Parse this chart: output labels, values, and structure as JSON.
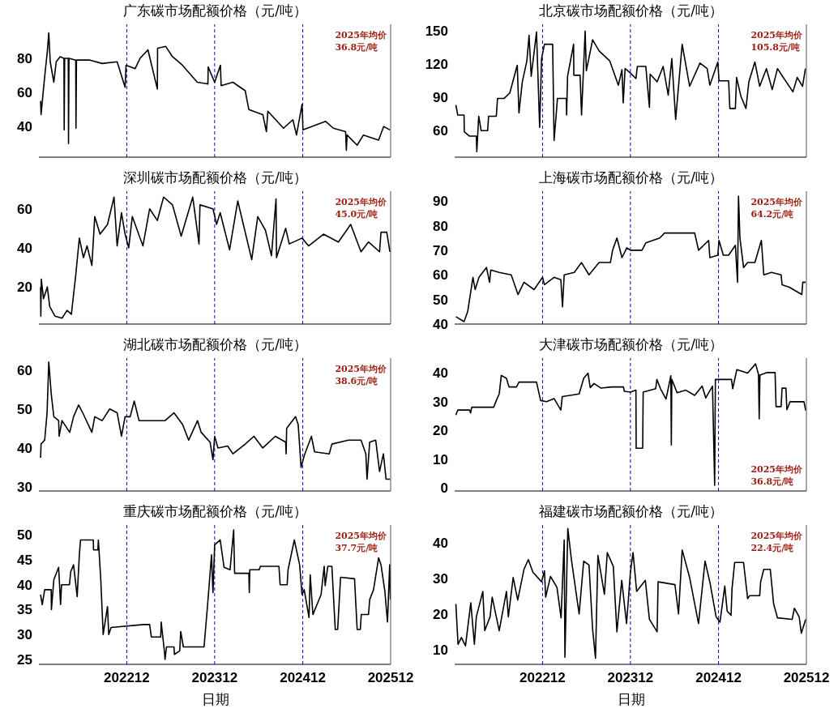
{
  "chart_data": [
    {
      "type": "line",
      "title": "广东碳市场配额价格（元/吨）",
      "color": "#000000",
      "tick_labels": "y",
      "xlim": [
        "2021-12-01",
        "2025-12-01"
      ],
      "ylim": [
        22,
        100
      ],
      "yticks": [
        40,
        60,
        80
      ],
      "ref_lines": [
        {
          "axis": "x",
          "value": "2022-12",
          "color": "#0000ff",
          "line_style": "dashed"
        },
        {
          "axis": "x",
          "value": "2023-12",
          "color": "#0000ff",
          "line_style": "dashed"
        },
        {
          "axis": "x",
          "value": "2024-12",
          "color": "#0000ff",
          "line_style": "dashed"
        }
      ],
      "annotations": [
        "2025年均价\n36.8元/吨"
      ],
      "x": [
        "2021-12-08",
        "2021-12-10",
        "2021-12-20",
        "2021-12-27",
        "2022-01-05",
        "2022-01-11",
        "2022-01-17",
        "2022-02-01",
        "2022-02-11",
        "2022-02-27",
        "2022-03-15",
        "2022-03-16",
        "2022-03-18",
        "2022-04-02",
        "2022-04-03",
        "2022-04-05",
        "2022-05-03",
        "2022-05-04",
        "2022-05-06",
        "2022-07-01",
        "2022-08-21",
        "2022-10-22",
        "2022-11-24",
        "2022-11-28",
        "2023-01-05",
        "2023-01-25",
        "2023-02-27",
        "2023-04-07",
        "2023-04-08",
        "2023-05-12",
        "2023-06-09",
        "2023-07-20",
        "2023-09-20",
        "2023-11-03",
        "2023-11-04",
        "2023-12-01",
        "2023-12-25",
        "2023-12-28",
        "2024-02-15",
        "2024-04-06",
        "2024-04-21",
        "2024-06-18",
        "2024-07-03",
        "2024-07-09",
        "2024-09-12",
        "2024-10-21",
        "2024-11-05",
        "2024-11-28",
        "2024-12-02",
        "2025-03-06",
        "2025-04-07",
        "2025-05-28",
        "2025-05-31",
        "2025-06-03",
        "2025-07-15",
        "2025-08-10",
        "2025-10-12",
        "2025-11-02",
        "2025-11-28"
      ],
      "values": [
        55,
        47,
        62,
        72,
        84,
        95,
        78,
        66,
        78,
        81,
        80,
        38,
        80,
        80,
        30,
        80,
        79,
        39,
        79,
        79,
        77,
        78,
        63,
        76,
        74,
        80,
        85,
        62,
        86,
        87,
        81,
        76,
        66,
        65,
        75,
        66,
        76,
        64,
        66,
        61,
        50,
        47,
        37,
        49,
        39,
        44,
        35,
        53,
        38,
        43,
        39,
        37,
        26,
        35,
        29,
        35,
        32,
        40,
        38
      ]
    },
    {
      "type": "line",
      "title": "北京碳市场配额价格（元/吨）",
      "color": "#000000",
      "tick_labels": "y",
      "xlim": [
        "2021-12-01",
        "2025-12-01"
      ],
      "ylim": [
        36,
        156
      ],
      "yticks": [
        60,
        90,
        120,
        150
      ],
      "ref_lines": [
        {
          "axis": "x",
          "value": "2022-12",
          "color": "#0000ff",
          "line_style": "dashed"
        },
        {
          "axis": "x",
          "value": "2023-12",
          "color": "#0000ff",
          "line_style": "dashed"
        },
        {
          "axis": "x",
          "value": "2024-12",
          "color": "#0000ff",
          "line_style": "dashed"
        }
      ],
      "annotations": [
        "2025年均价\n105.8元/吨"
      ],
      "x": [
        "2021-12-06",
        "2021-12-14",
        "2022-01-09",
        "2022-01-10",
        "2022-02-01",
        "2022-03-01",
        "2022-03-03",
        "2022-03-11",
        "2022-03-21",
        "2022-04-17",
        "2022-04-21",
        "2022-05-23",
        "2022-05-28",
        "2022-06-24",
        "2022-07-18",
        "2022-08-18",
        "2022-08-25",
        "2022-09-08",
        "2022-09-27",
        "2022-10-06",
        "2022-10-15",
        "2022-11-06",
        "2022-11-19",
        "2022-11-27",
        "2022-12-09",
        "2023-01-12",
        "2023-01-18",
        "2023-02-01",
        "2023-03-10",
        "2023-03-11",
        "2023-03-15",
        "2023-04-09",
        "2023-04-10",
        "2023-05-06",
        "2023-05-12",
        "2023-05-27",
        "2023-06-01",
        "2023-06-27",
        "2023-07-24",
        "2023-09-06",
        "2023-10-12",
        "2023-10-27",
        "2023-11-01",
        "2023-11-09",
        "2023-12-01",
        "2023-12-24",
        "2023-12-30",
        "2024-02-03",
        "2024-02-18",
        "2024-02-21",
        "2024-03-21",
        "2024-04-15",
        "2024-05-06",
        "2024-05-21",
        "2024-06-06",
        "2024-07-03",
        "2024-08-03",
        "2024-09-15",
        "2024-10-15",
        "2024-10-26",
        "2024-11-28",
        "2024-12-03",
        "2025-01-12",
        "2025-01-17",
        "2025-02-09",
        "2025-02-14",
        "2025-03-04",
        "2025-03-25",
        "2025-04-06",
        "2025-05-01",
        "2025-05-21",
        "2025-06-18",
        "2025-07-12",
        "2025-08-03",
        "2025-08-24",
        "2025-10-06",
        "2025-10-24",
        "2025-11-15",
        "2025-11-27"
      ],
      "values": [
        83,
        74,
        74,
        59,
        55,
        55,
        41,
        73,
        60,
        60,
        73,
        73,
        89,
        89,
        94,
        119,
        76,
        104,
        123,
        146,
        109,
        149,
        63,
        125,
        138,
        138,
        51,
        89,
        89,
        74,
        109,
        138,
        110,
        110,
        74,
        150,
        114,
        142,
        132,
        123,
        101,
        115,
        85,
        116,
        112,
        107,
        118,
        118,
        81,
        111,
        104,
        118,
        92,
        125,
        70,
        138,
        100,
        121,
        116,
        101,
        122,
        105,
        105,
        80,
        80,
        108,
        91,
        80,
        104,
        122,
        100,
        116,
        97,
        116,
        109,
        95,
        108,
        100,
        116
      ]
    },
    {
      "type": "line",
      "title": "深圳碳市场配额价格（元/吨）",
      "color": "#000000",
      "tick_labels": "y",
      "xlim": [
        "2021-12-01",
        "2025-12-01"
      ],
      "ylim": [
        1,
        69
      ],
      "yticks": [
        20,
        40,
        60
      ],
      "ref_lines": [
        {
          "axis": "x",
          "value": "2022-12",
          "color": "#0000ff",
          "line_style": "dashed"
        },
        {
          "axis": "x",
          "value": "2023-12",
          "color": "#0000ff",
          "line_style": "dashed"
        },
        {
          "axis": "x",
          "value": "2024-12",
          "color": "#0000ff",
          "line_style": "dashed"
        }
      ],
      "annotations": [
        "2025年均价\n45.0元/吨"
      ],
      "x": [
        "2021-12-08",
        "2021-12-09",
        "2021-12-11",
        "2021-12-20",
        "2022-01-05",
        "2022-01-15",
        "2022-02-06",
        "2022-03-07",
        "2022-03-28",
        "2022-04-15",
        "2022-05-03",
        "2022-05-18",
        "2022-06-04",
        "2022-06-19",
        "2022-07-09",
        "2022-07-21",
        "2022-08-12",
        "2022-09-12",
        "2022-10-09",
        "2022-10-22",
        "2022-11-09",
        "2022-11-24",
        "2022-12-09",
        "2022-12-24",
        "2023-02-06",
        "2023-03-06",
        "2023-04-07",
        "2023-05-03",
        "2023-06-09",
        "2023-07-15",
        "2023-09-01",
        "2023-09-27",
        "2023-10-01",
        "2023-11-24",
        "2023-12-09",
        "2023-12-24",
        "2024-02-01",
        "2024-03-06",
        "2024-05-03",
        "2024-05-28",
        "2024-06-29",
        "2024-07-24",
        "2024-08-12",
        "2024-08-14",
        "2024-09-21",
        "2024-10-06",
        "2024-11-28",
        "2024-12-25",
        "2025-02-25",
        "2025-04-28",
        "2025-06-18",
        "2025-07-31",
        "2025-08-31",
        "2025-10-16",
        "2025-10-22",
        "2025-11-15",
        "2025-11-28"
      ],
      "values": [
        20,
        5,
        24,
        14,
        20,
        10,
        5,
        4,
        8,
        6,
        26,
        45,
        35,
        41,
        31,
        56,
        47,
        52,
        66,
        41,
        58,
        47,
        40,
        56,
        41,
        60,
        54,
        66,
        62,
        46,
        66,
        42,
        62,
        60,
        52,
        58,
        39,
        64,
        34,
        56,
        49,
        36,
        65,
        35,
        50,
        42,
        45,
        41,
        47,
        43,
        52,
        38,
        43,
        38,
        48,
        48,
        38
      ]
    },
    {
      "type": "line",
      "title": "上海碳市场配额价格（元/吨）",
      "color": "#000000",
      "tick_labels": "y",
      "xlim": [
        "2021-12-01",
        "2025-12-01"
      ],
      "ylim": [
        40,
        94
      ],
      "yticks": [
        40,
        50,
        60,
        70,
        80,
        90
      ],
      "ref_lines": [
        {
          "axis": "x",
          "value": "2022-12",
          "color": "#0000ff",
          "line_style": "dashed"
        },
        {
          "axis": "x",
          "value": "2023-12",
          "color": "#0000ff",
          "line_style": "dashed"
        },
        {
          "axis": "x",
          "value": "2024-12",
          "color": "#0000ff",
          "line_style": "dashed"
        }
      ],
      "annotations": [
        "2025年均价\n64.2元/吨"
      ],
      "x": [
        "2021-12-06",
        "2022-01-09",
        "2022-01-24",
        "2022-02-15",
        "2022-02-24",
        "2022-03-12",
        "2022-04-12",
        "2022-04-25",
        "2022-04-30",
        "2022-06-04",
        "2022-07-24",
        "2022-08-21",
        "2022-09-15",
        "2022-10-27",
        "2022-12-01",
        "2022-12-09",
        "2023-01-18",
        "2023-02-15",
        "2023-02-22",
        "2023-03-01",
        "2023-04-12",
        "2023-05-12",
        "2023-06-12",
        "2023-07-24",
        "2023-09-09",
        "2023-09-18",
        "2023-10-06",
        "2023-10-27",
        "2023-11-16",
        "2023-12-01",
        "2024-01-18",
        "2024-02-03",
        "2024-04-01",
        "2024-04-21",
        "2024-07-03",
        "2024-08-24",
        "2024-09-09",
        "2024-10-21",
        "2024-10-26",
        "2024-11-28",
        "2024-12-03",
        "2024-12-21",
        "2025-01-12",
        "2025-02-09",
        "2025-02-18",
        "2025-02-22",
        "2025-02-28",
        "2025-03-15",
        "2025-04-01",
        "2025-05-01",
        "2025-05-28",
        "2025-06-07",
        "2025-07-09",
        "2025-08-18",
        "2025-08-22",
        "2025-09-21",
        "2025-11-12",
        "2025-11-16",
        "2025-11-28"
      ],
      "values": [
        43,
        41,
        45,
        59,
        54,
        59,
        63,
        57,
        62,
        61,
        60,
        52,
        57,
        54,
        59,
        56,
        59,
        58,
        47,
        60,
        61,
        65,
        60,
        65,
        65,
        70,
        75,
        67,
        71,
        70,
        70,
        73,
        75,
        77,
        77,
        77,
        70,
        74,
        67,
        68,
        74,
        68,
        68,
        72,
        57,
        92,
        75,
        63,
        65,
        65,
        74,
        60,
        61,
        60,
        56,
        55,
        52,
        57,
        57
      ]
    },
    {
      "type": "line",
      "title": "湖北碳市场配额价格（元/吨）",
      "color": "#000000",
      "tick_labels": "y",
      "xlim": [
        "2021-12-01",
        "2025-12-01"
      ],
      "ylim": [
        29,
        63
      ],
      "yticks": [
        30,
        40,
        50,
        60
      ],
      "ref_lines": [
        {
          "axis": "x",
          "value": "2022-12",
          "color": "#0000ff",
          "line_style": "dashed"
        },
        {
          "axis": "x",
          "value": "2023-12",
          "color": "#0000ff",
          "line_style": "dashed"
        },
        {
          "axis": "x",
          "value": "2024-12",
          "color": "#0000ff",
          "line_style": "dashed"
        }
      ],
      "annotations": [
        "2025年均价\n38.6元/吨"
      ],
      "x": [
        "2021-12-08",
        "2021-12-10",
        "2021-12-25",
        "2022-01-04",
        "2022-01-11",
        "2022-01-21",
        "2022-02-01",
        "2022-02-21",
        "2022-02-23",
        "2022-03-07",
        "2022-04-08",
        "2022-04-24",
        "2022-05-15",
        "2022-06-01",
        "2022-07-09",
        "2022-07-21",
        "2022-08-21",
        "2022-09-21",
        "2022-10-22",
        "2022-11-09",
        "2022-11-24",
        "2022-12-15",
        "2023-01-01",
        "2023-01-21",
        "2023-03-18",
        "2023-05-09",
        "2023-06-15",
        "2023-07-21",
        "2023-08-15",
        "2023-09-21",
        "2023-10-06",
        "2023-11-12",
        "2023-11-24",
        "2023-12-01",
        "2023-12-15",
        "2024-01-24",
        "2024-02-15",
        "2024-04-06",
        "2024-05-12",
        "2024-06-18",
        "2024-08-09",
        "2024-09-21",
        "2024-09-23",
        "2024-09-25",
        "2024-11-01",
        "2024-11-12",
        "2024-11-24",
        "2024-12-07",
        "2025-01-06",
        "2025-01-19",
        "2025-03-21",
        "2025-04-01",
        "2025-06-09",
        "2025-07-31",
        "2025-08-20",
        "2025-08-25",
        "2025-09-05",
        "2025-09-30",
        "2025-10-16",
        "2025-11-01",
        "2025-11-12",
        "2025-11-28"
      ],
      "values": [
        37.5,
        41,
        42,
        49,
        62,
        54,
        48,
        47,
        43,
        47,
        44,
        48,
        51,
        49,
        44,
        48,
        47,
        50,
        49,
        43,
        48,
        48,
        52,
        47,
        47,
        47,
        49,
        46,
        42,
        47,
        44,
        41.5,
        37,
        43,
        40,
        40.5,
        38.5,
        41,
        43,
        40,
        43,
        41.5,
        38.5,
        45,
        48,
        46,
        35,
        38,
        43,
        39,
        38.5,
        41,
        42,
        42,
        38.5,
        32,
        41.5,
        42,
        34,
        38.5,
        32,
        32
      ]
    },
    {
      "type": "line",
      "title": "大津碳市场配额价格（元/吨）",
      "color": "#000000",
      "tick_labels": "y",
      "xlim": [
        "2021-12-01",
        "2025-12-01"
      ],
      "ylim": [
        -1,
        45
      ],
      "yticks": [
        0,
        10,
        20,
        30,
        40
      ],
      "ref_lines": [
        {
          "axis": "x",
          "value": "2022-12",
          "color": "#0000ff",
          "line_style": "dashed"
        },
        {
          "axis": "x",
          "value": "2023-12",
          "color": "#0000ff",
          "line_style": "dashed"
        },
        {
          "axis": "x",
          "value": "2024-12",
          "color": "#0000ff",
          "line_style": "dashed"
        }
      ],
      "annotations": [
        "2025年均价\n36.8元/吨"
      ],
      "x": [
        "2021-12-06",
        "2021-12-14",
        "2022-02-01",
        "2022-02-05",
        "2022-02-10",
        "2022-05-12",
        "2022-05-23",
        "2022-06-04",
        "2022-06-13",
        "2022-07-04",
        "2022-07-15",
        "2022-08-15",
        "2022-08-25",
        "2022-11-06",
        "2022-11-23",
        "2022-12-18",
        "2023-01-18",
        "2023-02-15",
        "2023-02-21",
        "2023-05-02",
        "2023-05-21",
        "2023-06-08",
        "2023-06-17",
        "2023-07-03",
        "2023-08-01",
        "2023-09-15",
        "2023-11-02",
        "2023-11-06",
        "2023-12-01",
        "2023-12-24",
        "2023-12-25",
        "2024-01-21",
        "2024-01-23",
        "2024-03-15",
        "2024-03-20",
        "2024-04-04",
        "2024-04-27",
        "2024-05-17",
        "2024-05-19",
        "2024-05-21",
        "2024-06-12",
        "2024-07-18",
        "2024-08-24",
        "2024-09-24",
        "2024-10-09",
        "2024-11-06",
        "2024-11-15",
        "2024-11-18",
        "2025-01-24",
        "2025-01-29",
        "2025-02-15",
        "2025-04-01",
        "2025-05-04",
        "2025-05-16",
        "2025-05-19",
        "2025-05-22",
        "2025-06-21",
        "2025-07-24",
        "2025-07-28",
        "2025-08-18",
        "2025-08-22",
        "2025-09-07",
        "2025-09-11",
        "2025-09-24",
        "2025-11-21",
        "2025-11-28"
      ],
      "values": [
        25.3,
        27,
        27,
        26,
        28,
        28,
        30.3,
        32.6,
        39,
        38,
        35,
        35,
        36.7,
        36.7,
        30.3,
        29.9,
        31,
        27,
        31.7,
        32.6,
        38,
        39.8,
        34.8,
        36.2,
        34.6,
        35,
        35,
        33.5,
        33.2,
        33.9,
        13.8,
        13.8,
        33.2,
        34.4,
        37.6,
        34.4,
        30.8,
        38.9,
        14.9,
        37.6,
        33,
        33.9,
        32.1,
        35.3,
        31.2,
        35.3,
        1,
        37.6,
        37.6,
        34.4,
        41,
        39.8,
        43,
        39.4,
        24,
        39.1,
        40,
        40,
        28.2,
        28.2,
        34.6,
        34.6,
        27.1,
        29.9,
        29.9,
        26.9
      ]
    },
    {
      "type": "line",
      "title": "重庆碳市场配额价格（元/吨）",
      "xlabel": "日期",
      "color": "#000000",
      "xlim": [
        "2021-12-01",
        "2025-12-01"
      ],
      "xticks": [
        {
          "value": "2022-12",
          "label": "202212"
        },
        {
          "value": "2023-12",
          "label": "202312"
        },
        {
          "value": "2024-12",
          "label": "202412"
        },
        {
          "value": "2025-12",
          "label": "202512"
        }
      ],
      "ylim": [
        24,
        52
      ],
      "yticks": [
        25,
        30,
        35,
        40,
        45,
        50
      ],
      "ref_lines": [
        {
          "axis": "x",
          "value": "2022-12",
          "color": "#0000ff",
          "line_style": "dashed"
        },
        {
          "axis": "x",
          "value": "2023-12",
          "color": "#0000ff",
          "line_style": "dashed"
        },
        {
          "axis": "x",
          "value": "2024-12",
          "color": "#0000ff",
          "line_style": "dashed"
        }
      ],
      "annotations": [
        "2025年均价\n37.7元/吨"
      ],
      "x": [
        "2021-12-08",
        "2021-12-15",
        "2021-12-25",
        "2022-01-21",
        "2022-01-22",
        "2022-02-01",
        "2022-02-21",
        "2022-03-01",
        "2022-03-05",
        "2022-04-07",
        "2022-04-12",
        "2022-04-24",
        "2022-05-09",
        "2022-05-18",
        "2022-05-23",
        "2022-07-15",
        "2022-07-16",
        "2022-08-03",
        "2022-08-05",
        "2022-08-15",
        "2022-08-25",
        "2022-09-12",
        "2022-09-17",
        "2022-09-27",
        "2023-02-09",
        "2023-03-06",
        "2023-03-13",
        "2023-04-21",
        "2023-04-23",
        "2023-05-06",
        "2023-05-09",
        "2023-05-15",
        "2023-06-15",
        "2023-06-17",
        "2023-07-09",
        "2023-07-13",
        "2023-07-24",
        "2023-10-18",
        "2023-11-03",
        "2023-11-18",
        "2023-11-24",
        "2023-12-01",
        "2023-12-24",
        "2024-01-09",
        "2024-02-03",
        "2024-02-18",
        "2024-02-22",
        "2024-03-09",
        "2024-04-21",
        "2024-04-23",
        "2024-04-25",
        "2024-06-03",
        "2024-06-08",
        "2024-08-24",
        "2024-08-29",
        "2024-09-27",
        "2024-10-01",
        "2024-10-27",
        "2024-11-18",
        "2024-11-28",
        "2024-12-07",
        "2024-12-27",
        "2025-01-01",
        "2025-01-12",
        "2025-02-15",
        "2025-02-28",
        "2025-03-04",
        "2025-03-15",
        "2025-04-01",
        "2025-04-15",
        "2025-04-25",
        "2025-05-07",
        "2025-07-04",
        "2025-07-15",
        "2025-07-28",
        "2025-08-01",
        "2025-08-31",
        "2025-09-05",
        "2025-09-21",
        "2025-10-12",
        "2025-10-22",
        "2025-11-07",
        "2025-11-18",
        "2025-11-27",
        "2025-11-30"
      ],
      "values": [
        38,
        36,
        39,
        39,
        35,
        41,
        43.5,
        36,
        40,
        40,
        42.6,
        44,
        37.6,
        46,
        49,
        49,
        47,
        47,
        49,
        41,
        30,
        35.6,
        30,
        31.4,
        32,
        32,
        29.5,
        29.5,
        32.5,
        26.7,
        25,
        27.5,
        27.5,
        26,
        26.7,
        30.6,
        27.5,
        27.5,
        36.7,
        46,
        38.4,
        48,
        49,
        43.5,
        43,
        51,
        42.3,
        42.3,
        42.3,
        38.4,
        43,
        43,
        43.7,
        43.7,
        40,
        40,
        43,
        49,
        44,
        38,
        39,
        33.4,
        42,
        34,
        38,
        43.7,
        39.8,
        43.7,
        43.7,
        31,
        31,
        41.5,
        41.2,
        31,
        31,
        34,
        34,
        37,
        39,
        45.4,
        44,
        38.7,
        32.5,
        44,
        37
      ]
    },
    {
      "type": "line",
      "title": "福建碳市场配额价格（元/吨）",
      "xlabel": "日期",
      "color": "#000000",
      "xlim": [
        "2021-12-01",
        "2025-12-01"
      ],
      "xticks": [
        {
          "value": "2022-12",
          "label": "202212"
        },
        {
          "value": "2023-12",
          "label": "202312"
        },
        {
          "value": "2024-12",
          "label": "202412"
        },
        {
          "value": "2025-12",
          "label": "202512"
        }
      ],
      "ylim": [
        6,
        45
      ],
      "yticks": [
        10,
        20,
        30,
        40
      ],
      "ref_lines": [
        {
          "axis": "x",
          "value": "2022-12",
          "color": "#0000ff",
          "line_style": "dashed"
        },
        {
          "axis": "x",
          "value": "2023-12",
          "color": "#0000ff",
          "line_style": "dashed"
        },
        {
          "axis": "x",
          "value": "2024-12",
          "color": "#0000ff",
          "line_style": "dashed"
        }
      ],
      "annotations": [
        "2025年均价\n22.4元/吨"
      ],
      "x": [
        "2021-12-06",
        "2021-12-15",
        "2021-12-29",
        "2022-01-15",
        "2022-02-06",
        "2022-02-21",
        "2022-03-01",
        "2022-03-28",
        "2022-04-05",
        "2022-04-27",
        "2022-05-06",
        "2022-06-04",
        "2022-07-04",
        "2022-07-12",
        "2022-08-01",
        "2022-08-20",
        "2022-09-15",
        "2022-10-03",
        "2022-10-22",
        "2022-11-27",
        "2022-12-09",
        "2022-12-14",
        "2023-01-03",
        "2023-01-30",
        "2023-02-16",
        "2023-03-01",
        "2023-03-04",
        "2023-03-16",
        "2023-03-31",
        "2023-05-02",
        "2023-05-21",
        "2023-06-12",
        "2023-06-27",
        "2023-07-09",
        "2023-07-19",
        "2023-08-15",
        "2023-08-27",
        "2023-09-21",
        "2023-10-06",
        "2023-10-26",
        "2023-11-15",
        "2023-12-01",
        "2023-12-12",
        "2023-12-27",
        "2024-02-01",
        "2024-02-18",
        "2024-03-21",
        "2024-03-25",
        "2024-06-03",
        "2024-06-18",
        "2024-07-03",
        "2024-08-03",
        "2024-09-09",
        "2024-10-06",
        "2024-10-27",
        "2024-11-21",
        "2024-12-07",
        "2024-12-27",
        "2025-01-06",
        "2025-01-22",
        "2025-01-26",
        "2025-02-06",
        "2025-03-15",
        "2025-04-01",
        "2025-04-09",
        "2025-05-21",
        "2025-05-25",
        "2025-06-07",
        "2025-07-04",
        "2025-07-18",
        "2025-08-03",
        "2025-10-03",
        "2025-10-12",
        "2025-11-01",
        "2025-11-10",
        "2025-11-28"
      ],
      "values": [
        22.9,
        11.6,
        13.5,
        11.2,
        23.2,
        11.6,
        19.3,
        26.4,
        15.4,
        19.3,
        24.8,
        15.4,
        26.4,
        19.3,
        30.3,
        24,
        32.6,
        35.3,
        31.8,
        29.1,
        32.2,
        24.8,
        30.6,
        27.5,
        19,
        40.8,
        8,
        44,
        35.3,
        20.1,
        34.9,
        33.8,
        15.8,
        7.7,
        36.5,
        25.6,
        37.3,
        33.4,
        15.1,
        29.5,
        17.4,
        31.8,
        37.3,
        26.4,
        29.5,
        18.6,
        15.1,
        29.1,
        28.3,
        20.1,
        38,
        30.3,
        17.4,
        34.9,
        28.7,
        19.3,
        17.8,
        27.9,
        20.9,
        19.7,
        27.1,
        34.5,
        34.5,
        24.4,
        25.2,
        25.2,
        29.1,
        32.6,
        32.6,
        22.9,
        19,
        18.6,
        21.7,
        19.3,
        14.7,
        18.6
      ]
    }
  ]
}
